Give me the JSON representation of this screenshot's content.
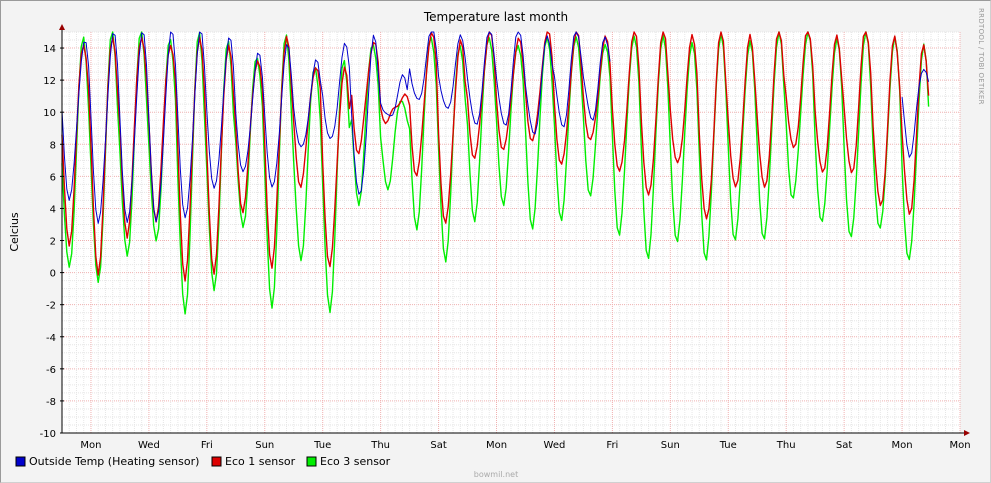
{
  "chart_data": {
    "type": "line",
    "title": "Temperature last month",
    "ylabel": "Celcius",
    "ylim": [
      -10,
      15
    ],
    "yticks": [
      -10,
      -8,
      -6,
      -4,
      -2,
      0,
      2,
      4,
      6,
      8,
      10,
      12,
      14
    ],
    "xlim_days": [
      0,
      31
    ],
    "x_tick_labels": [
      {
        "day": 1,
        "label": "Mon"
      },
      {
        "day": 3,
        "label": "Wed"
      },
      {
        "day": 5,
        "label": "Fri"
      },
      {
        "day": 7,
        "label": "Sun"
      },
      {
        "day": 9,
        "label": "Tue"
      },
      {
        "day": 11,
        "label": "Thu"
      },
      {
        "day": 13,
        "label": "Sat"
      },
      {
        "day": 15,
        "label": "Mon"
      },
      {
        "day": 17,
        "label": "Wed"
      },
      {
        "day": 19,
        "label": "Fri"
      },
      {
        "day": 21,
        "label": "Sun"
      },
      {
        "day": 23,
        "label": "Tue"
      },
      {
        "day": 25,
        "label": "Thu"
      },
      {
        "day": 27,
        "label": "Sat"
      },
      {
        "day": 29,
        "label": "Mon"
      }
    ],
    "grid": true,
    "legend_position": "bottom-left",
    "series": [
      {
        "name": "Outside Temp (Heating sensor)",
        "color": "#0000cc",
        "daily_min": [
          4.5,
          3.0,
          3.0,
          3.0,
          3.2,
          5.0,
          6.0,
          5.0,
          7.5,
          8.0,
          4.5,
          9.5,
          10.5,
          10.0,
          9.0,
          9.0,
          8.5,
          9.0,
          9.5,
          null,
          null,
          null,
          null,
          null,
          null,
          null,
          null,
          null,
          null,
          7.5
        ],
        "daily_max": [
          14.5,
          15.0,
          15.0,
          15.0,
          15.0,
          14.5,
          13.5,
          14.0,
          13.0,
          14.0,
          14.5,
          12.0,
          15.0,
          14.5,
          15.0,
          15.0,
          14.5,
          15.0,
          14.5,
          null,
          null,
          null,
          null,
          null,
          null,
          null,
          null,
          null,
          null,
          13.0
        ]
      },
      {
        "name": "Eco 1 sensor",
        "color": "#dd0000",
        "daily_min": [
          2.0,
          0.2,
          2.5,
          3.5,
          -0.2,
          0.2,
          4.0,
          0.5,
          5.5,
          0.5,
          7.5,
          9.5,
          6.0,
          3.0,
          7.0,
          7.5,
          8.0,
          6.5,
          8.0,
          6.0,
          4.5,
          6.5,
          3.0,
          5.0,
          5.0,
          7.5,
          6.0,
          6.0,
          4.0,
          3.5
        ],
        "daily_max": [
          14.5,
          15.0,
          15.0,
          14.5,
          15.0,
          14.5,
          13.5,
          15.0,
          13.0,
          13.0,
          14.5,
          11.0,
          15.0,
          14.5,
          15.0,
          14.5,
          15.0,
          15.0,
          14.5,
          15.0,
          15.0,
          14.5,
          15.0,
          14.5,
          15.0,
          15.0,
          14.5,
          15.0,
          14.5,
          14.0
        ]
      },
      {
        "name": "Eco 3 sensor",
        "color": "#00ee00",
        "daily_min": [
          0.2,
          -0.7,
          1.0,
          2.0,
          -2.5,
          -1.0,
          3.0,
          -2.0,
          1.0,
          -2.2,
          4.5,
          5.5,
          3.0,
          1.0,
          3.5,
          4.5,
          3.0,
          3.5,
          5.0,
          2.5,
          1.0,
          2.0,
          0.8,
          2.0,
          2.0,
          4.5,
          3.0,
          2.0,
          2.5,
          0.5
        ],
        "daily_max": [
          14.5,
          15.0,
          15.0,
          14.5,
          15.0,
          14.5,
          13.5,
          15.0,
          13.0,
          13.5,
          14.5,
          11.0,
          15.0,
          14.5,
          15.0,
          14.5,
          15.0,
          15.0,
          14.5,
          15.0,
          15.0,
          14.5,
          15.0,
          14.5,
          15.0,
          15.0,
          14.5,
          15.0,
          14.5,
          14.0
        ]
      }
    ]
  },
  "side_credit": "RRDTOOL / TOBI OETIKER",
  "footer_credit": "bowmil.net"
}
